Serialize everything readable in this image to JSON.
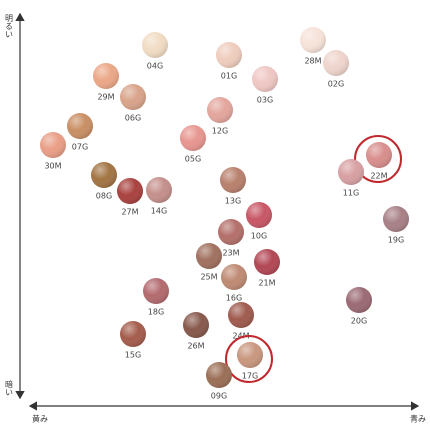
{
  "axes": {
    "top": "明るい",
    "bottom": "暗い",
    "left": "黄み",
    "right": "青み"
  },
  "nodes": [
    {
      "label": "04G",
      "color": "#f1dcc4"
    },
    {
      "label": "01G",
      "color": "#efcdbe"
    },
    {
      "label": "28M",
      "color": "#f6e2d8"
    },
    {
      "label": "02G",
      "color": "#eed4cc"
    },
    {
      "label": "03G",
      "color": "#efc7c3"
    },
    {
      "label": "29M",
      "color": "#eba787"
    },
    {
      "label": "06G",
      "color": "#d9a38a"
    },
    {
      "label": "12G",
      "color": "#e3a69d"
    },
    {
      "label": "07G",
      "color": "#c98f64"
    },
    {
      "label": "05G",
      "color": "#e7968f"
    },
    {
      "label": "30M",
      "color": "#e99e86"
    },
    {
      "label": "22M",
      "color": "#d88e8c",
      "highlight": true
    },
    {
      "label": "11G",
      "color": "#d8a0a3"
    },
    {
      "label": "08G",
      "color": "#a27443"
    },
    {
      "label": "27M",
      "color": "#a8423f"
    },
    {
      "label": "14G",
      "color": "#c48f8b"
    },
    {
      "label": "13G",
      "color": "#b8806d"
    },
    {
      "label": "10G",
      "color": "#c85766"
    },
    {
      "label": "19G",
      "color": "#a78086"
    },
    {
      "label": "23M",
      "color": "#b46f6a"
    },
    {
      "label": "25M",
      "color": "#a0705f"
    },
    {
      "label": "21M",
      "color": "#b24755"
    },
    {
      "label": "16G",
      "color": "#bf8a73"
    },
    {
      "label": "18G",
      "color": "#b36a6e"
    },
    {
      "label": "20G",
      "color": "#9b6a74"
    },
    {
      "label": "24M",
      "color": "#9f5b4e"
    },
    {
      "label": "26M",
      "color": "#87594c"
    },
    {
      "label": "15G",
      "color": "#a45c4c"
    },
    {
      "label": "17G",
      "color": "#c9977f",
      "highlight": true
    },
    {
      "label": "09G",
      "color": "#9b6f57"
    }
  ]
}
